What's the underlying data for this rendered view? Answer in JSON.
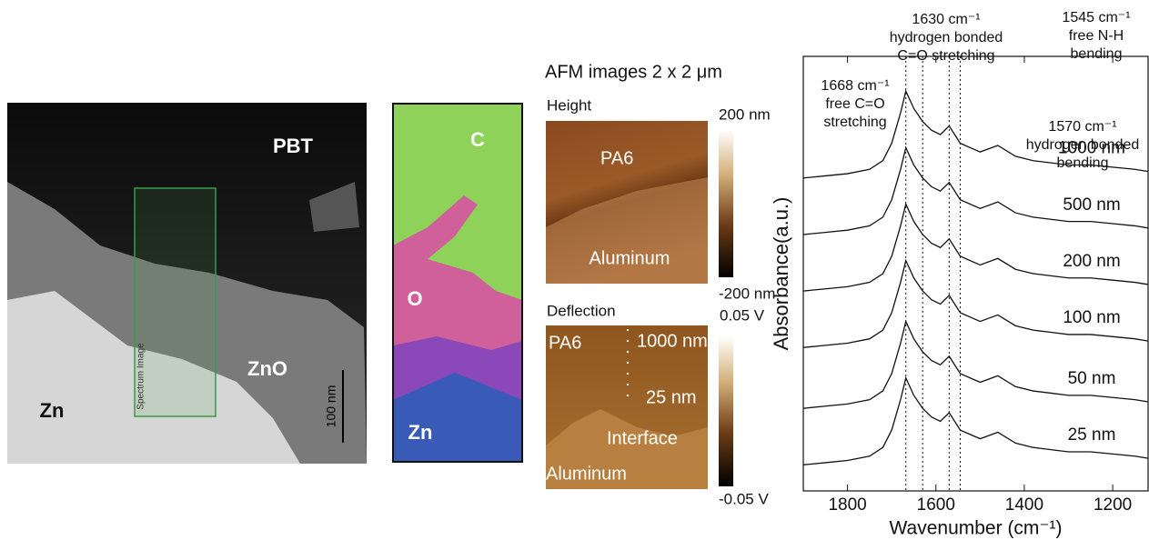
{
  "panels": {
    "tem": {
      "labels": [
        "PBT",
        "ZnO",
        "Zn"
      ],
      "box_label": "Spectrum Image",
      "scale": "100 nm"
    },
    "edx": {
      "labels": [
        "C",
        "O",
        "Zn"
      ]
    },
    "afm": {
      "title": "AFM images 2 x 2 μm",
      "height": {
        "title": "Height",
        "labels": [
          "PA6",
          "Aluminum"
        ],
        "scale_max": "200 nm",
        "scale_min": "-200 nm"
      },
      "deflection": {
        "title": "Deflection",
        "labels": [
          "PA6",
          "1000 nm",
          "25 nm",
          "Interface",
          "Aluminum"
        ],
        "scale_max": "0.05 V",
        "scale_min": "-0.05 V"
      }
    }
  },
  "chart_data": {
    "type": "line",
    "xlabel": "Wavenumber (cm⁻¹)",
    "ylabel": "Absorbance(a.u.)",
    "x": [
      1900,
      1850,
      1800,
      1750,
      1720,
      1700,
      1680,
      1668,
      1650,
      1630,
      1610,
      1590,
      1570,
      1545,
      1500,
      1460,
      1420,
      1380,
      1340,
      1300,
      1250,
      1200,
      1150,
      1120
    ],
    "xlim": [
      1900,
      1120
    ],
    "xticks": [
      1800,
      1600,
      1400,
      1200
    ],
    "ylim": [
      0,
      10
    ],
    "series": [
      {
        "name": "1000 nm",
        "color": "#111",
        "values": [
          7.2,
          7.25,
          7.3,
          7.4,
          7.6,
          8.0,
          8.7,
          9.2,
          8.8,
          8.5,
          8.3,
          8.2,
          8.4,
          8.0,
          7.8,
          7.95,
          7.7,
          7.6,
          7.55,
          7.5,
          7.5,
          7.45,
          7.4,
          7.35
        ]
      },
      {
        "name": "500 nm",
        "color": "#111",
        "values": [
          5.9,
          5.95,
          6.0,
          6.1,
          6.3,
          6.7,
          7.4,
          7.9,
          7.5,
          7.2,
          7.0,
          6.9,
          7.1,
          6.7,
          6.5,
          6.65,
          6.4,
          6.3,
          6.25,
          6.2,
          6.2,
          6.15,
          6.1,
          6.05
        ]
      },
      {
        "name": "200 nm",
        "color": "#111",
        "values": [
          4.6,
          4.65,
          4.7,
          4.8,
          5.0,
          5.4,
          6.1,
          6.6,
          6.2,
          5.9,
          5.7,
          5.6,
          5.8,
          5.4,
          5.2,
          5.35,
          5.1,
          5.0,
          4.95,
          4.9,
          4.9,
          4.85,
          4.8,
          4.75
        ]
      },
      {
        "name": "100 nm",
        "color": "#111",
        "values": [
          3.3,
          3.35,
          3.4,
          3.5,
          3.7,
          4.1,
          4.8,
          5.3,
          4.9,
          4.6,
          4.4,
          4.3,
          4.5,
          4.1,
          3.9,
          4.05,
          3.8,
          3.7,
          3.65,
          3.6,
          3.6,
          3.55,
          3.5,
          3.45
        ]
      },
      {
        "name": "50 nm",
        "color": "#111",
        "values": [
          1.9,
          1.95,
          2.0,
          2.1,
          2.3,
          2.7,
          3.4,
          3.9,
          3.5,
          3.2,
          3.0,
          2.9,
          3.1,
          2.7,
          2.5,
          2.65,
          2.4,
          2.3,
          2.25,
          2.2,
          2.2,
          2.15,
          2.1,
          2.05
        ]
      },
      {
        "name": "25 nm",
        "color": "#111",
        "values": [
          0.6,
          0.65,
          0.7,
          0.8,
          1.0,
          1.4,
          2.1,
          2.6,
          2.2,
          1.9,
          1.7,
          1.6,
          1.8,
          1.4,
          1.2,
          1.35,
          1.1,
          1.0,
          0.95,
          0.9,
          0.9,
          0.85,
          0.8,
          0.75
        ]
      }
    ],
    "annotations": [
      {
        "x": 1668,
        "lines": [
          "1668 cm⁻¹",
          "free C=O",
          "stretching"
        ]
      },
      {
        "x": 1630,
        "lines": [
          "1630 cm⁻¹",
          "hydrogen bonded",
          "C=O stretching"
        ]
      },
      {
        "x": 1570,
        "lines": [
          "1570 cm⁻¹",
          "hydrogen bonded",
          "bending"
        ]
      },
      {
        "x": 1545,
        "lines": [
          "1545 cm⁻¹",
          "free N-H",
          "bending"
        ]
      }
    ]
  }
}
